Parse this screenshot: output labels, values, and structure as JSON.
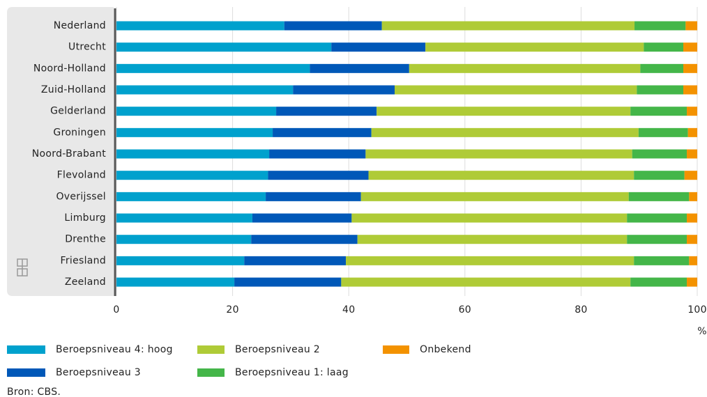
{
  "chart_data": {
    "type": "stacked-barh",
    "categories": [
      "Nederland",
      "Utrecht",
      "Noord-Holland",
      "Zuid-Holland",
      "Gelderland",
      "Groningen",
      "Noord-Brabant",
      "Flevoland",
      "Overijssel",
      "Limburg",
      "Drenthe",
      "Friesland",
      "Zeeland"
    ],
    "series": [
      {
        "name": "Beroepsniveau 4: hoog",
        "color": "#00a1cd",
        "values": [
          28.9,
          37.0,
          33.3,
          30.4,
          27.5,
          26.9,
          26.3,
          26.1,
          25.7,
          23.4,
          23.2,
          22.0,
          20.3
        ]
      },
      {
        "name": "Beroepsniveau 3",
        "color": "#0058b8",
        "values": [
          16.8,
          16.2,
          17.1,
          17.5,
          17.3,
          17.0,
          16.6,
          17.3,
          16.4,
          17.1,
          18.3,
          17.5,
          18.4
        ]
      },
      {
        "name": "Beroepsniveau 2",
        "color": "#afcb37",
        "values": [
          43.5,
          37.6,
          39.8,
          41.7,
          43.7,
          46.0,
          45.9,
          45.7,
          46.1,
          47.4,
          46.4,
          49.6,
          49.8
        ]
      },
      {
        "name": "Beroepsniveau 1: laag",
        "color": "#44b649",
        "values": [
          8.8,
          6.8,
          7.4,
          8.0,
          9.7,
          8.5,
          9.4,
          8.7,
          10.4,
          10.3,
          10.3,
          9.5,
          9.7
        ]
      },
      {
        "name": "Onbekend",
        "color": "#f39200",
        "values": [
          2.0,
          2.4,
          2.4,
          2.4,
          1.8,
          1.6,
          1.8,
          2.2,
          1.4,
          1.8,
          1.8,
          1.4,
          1.8
        ]
      }
    ],
    "xlim": [
      0,
      100
    ],
    "xticks": [
      0,
      20,
      40,
      60,
      80,
      100
    ],
    "xlabel": "%",
    "grid": true,
    "source": "Bron: CBS."
  }
}
